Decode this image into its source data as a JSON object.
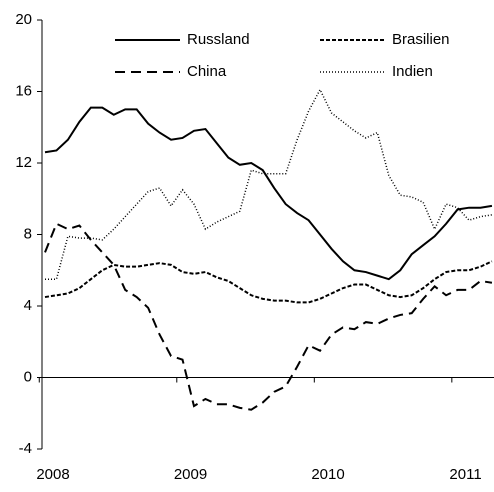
{
  "chart_data": {
    "type": "line",
    "categories": [
      "2008",
      null,
      null,
      null,
      null,
      null,
      null,
      null,
      null,
      null,
      null,
      null,
      "2009",
      null,
      null,
      null,
      null,
      null,
      null,
      null,
      null,
      null,
      null,
      null,
      "2010",
      null,
      null,
      null,
      null,
      null,
      null,
      null,
      null,
      null,
      null,
      null,
      "2011",
      null,
      null,
      null
    ],
    "series": [
      {
        "name": "Russland",
        "color": "#000000",
        "dash": "none",
        "values": [
          12.6,
          12.7,
          13.3,
          14.3,
          15.1,
          15.1,
          14.7,
          15.0,
          15.0,
          14.2,
          13.7,
          13.3,
          13.4,
          13.8,
          13.9,
          13.1,
          12.3,
          11.9,
          12.0,
          11.6,
          10.6,
          9.7,
          9.2,
          8.8,
          8.0,
          7.2,
          6.5,
          6.0,
          5.9,
          5.7,
          5.5,
          6.0,
          6.9,
          7.4,
          7.9,
          8.6,
          9.4,
          9.5,
          9.5,
          9.6
        ]
      },
      {
        "name": "Brasilien",
        "color": "#000000",
        "dash": "4,2",
        "values": [
          4.5,
          4.6,
          4.7,
          5.0,
          5.5,
          6.0,
          6.3,
          6.2,
          6.2,
          6.3,
          6.4,
          6.3,
          5.9,
          5.8,
          5.9,
          5.6,
          5.4,
          5.0,
          4.6,
          4.4,
          4.3,
          4.3,
          4.2,
          4.2,
          4.4,
          4.7,
          5.0,
          5.2,
          5.2,
          4.9,
          4.6,
          4.5,
          4.6,
          5.0,
          5.5,
          5.9,
          6.0,
          6.0,
          6.2,
          6.5
        ]
      },
      {
        "name": "China",
        "color": "#000000",
        "dash": "10,6",
        "values": [
          7.0,
          8.6,
          8.3,
          8.5,
          7.7,
          7.0,
          6.3,
          4.9,
          4.5,
          3.9,
          2.4,
          1.2,
          1.0,
          -1.6,
          -1.2,
          -1.5,
          -1.5,
          -1.7,
          -1.8,
          -1.4,
          -0.8,
          -0.5,
          0.6,
          1.8,
          1.5,
          2.4,
          2.8,
          2.7,
          3.1,
          3.0,
          3.3,
          3.5,
          3.6,
          4.4,
          5.1,
          4.6,
          4.9,
          4.9,
          5.4,
          5.3
        ]
      },
      {
        "name": "Indien",
        "color": "#000000",
        "dash": "1,2",
        "values": [
          5.5,
          5.5,
          7.9,
          7.8,
          7.8,
          7.7,
          8.3,
          9.0,
          9.7,
          10.4,
          10.6,
          9.6,
          10.5,
          9.7,
          8.3,
          8.7,
          9.0,
          9.3,
          11.6,
          11.4,
          11.4,
          11.4,
          13.3,
          14.9,
          16.1,
          14.8,
          14.3,
          13.8,
          13.4,
          13.7,
          11.3,
          10.2,
          10.1,
          9.8,
          8.3,
          9.7,
          9.5,
          8.8,
          9.0,
          9.1
        ]
      }
    ],
    "ylim": [
      -4,
      20
    ],
    "yticks": [
      -4,
      0,
      4,
      8,
      12,
      16,
      20
    ],
    "grid": false,
    "legend": "top"
  }
}
